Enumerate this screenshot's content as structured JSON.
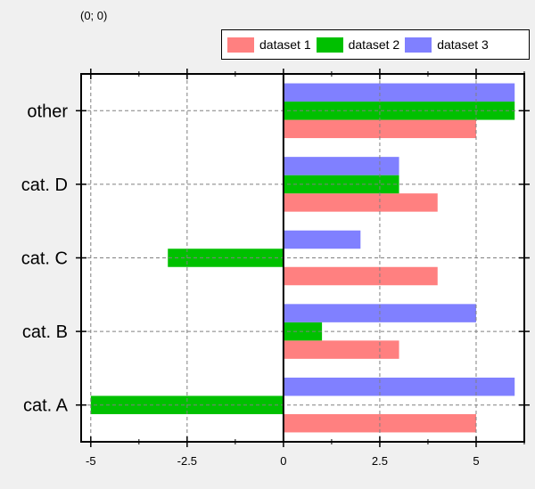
{
  "cursor_readout": "(0; 0)",
  "chart_data": {
    "type": "bar",
    "orientation": "horizontal",
    "categories": [
      "cat. A",
      "cat. B",
      "cat. C",
      "cat. D",
      "other"
    ],
    "series": [
      {
        "name": "dataset 1",
        "color": "#ff8080",
        "values": [
          5,
          3,
          4,
          4,
          5
        ]
      },
      {
        "name": "dataset 2",
        "color": "#00c000",
        "values": [
          -5,
          1,
          -3,
          3,
          6
        ]
      },
      {
        "name": "dataset 3",
        "color": "#8080ff",
        "values": [
          6,
          5,
          2,
          3,
          6
        ]
      }
    ],
    "xlim": [
      -5.25,
      6.25
    ],
    "xticks": [
      -5,
      -2.5,
      0,
      2.5,
      5
    ],
    "xtick_labels": [
      "-5",
      "-2.5",
      "0",
      "2.5",
      "5"
    ],
    "grid": true,
    "legend_position": "top-right"
  }
}
